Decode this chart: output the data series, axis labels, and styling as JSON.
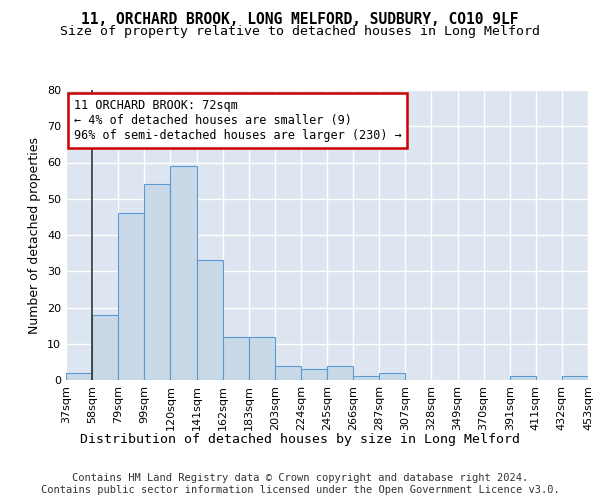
{
  "title1": "11, ORCHARD BROOK, LONG MELFORD, SUDBURY, CO10 9LF",
  "title2": "Size of property relative to detached houses in Long Melford",
  "xlabel": "Distribution of detached houses by size in Long Melford",
  "ylabel": "Number of detached properties",
  "bar_values": [
    2,
    18,
    46,
    54,
    59,
    33,
    12,
    12,
    4,
    3,
    4,
    1,
    2,
    0,
    0,
    0,
    0,
    1,
    0,
    1
  ],
  "bar_labels": [
    "37sqm",
    "58sqm",
    "79sqm",
    "99sqm",
    "120sqm",
    "141sqm",
    "162sqm",
    "183sqm",
    "203sqm",
    "224sqm",
    "245sqm",
    "266sqm",
    "287sqm",
    "307sqm",
    "328sqm",
    "349sqm",
    "370sqm",
    "391sqm",
    "411sqm",
    "432sqm",
    "453sqm"
  ],
  "bar_color": "#c9d9e8",
  "bar_edge_color": "#5b9bd5",
  "annotation_line1": "11 ORCHARD BROOK: 72sqm",
  "annotation_line2": "← 4% of detached houses are smaller (9)",
  "annotation_line3": "96% of semi-detached houses are larger (230) →",
  "annotation_box_color": "#ffffff",
  "annotation_box_edge_color": "#cc0000",
  "vline_x": 0.5,
  "vline_color": "#333333",
  "ylim": [
    0,
    80
  ],
  "yticks": [
    0,
    10,
    20,
    30,
    40,
    50,
    60,
    70,
    80
  ],
  "background_color": "#dde6f0",
  "grid_color": "#ffffff",
  "footer_text": "Contains HM Land Registry data © Crown copyright and database right 2024.\nContains public sector information licensed under the Open Government Licence v3.0.",
  "title_fontsize": 10.5,
  "subtitle_fontsize": 9.5,
  "xlabel_fontsize": 9.5,
  "ylabel_fontsize": 9,
  "tick_fontsize": 8,
  "annotation_fontsize": 8.5,
  "footer_fontsize": 7.5
}
